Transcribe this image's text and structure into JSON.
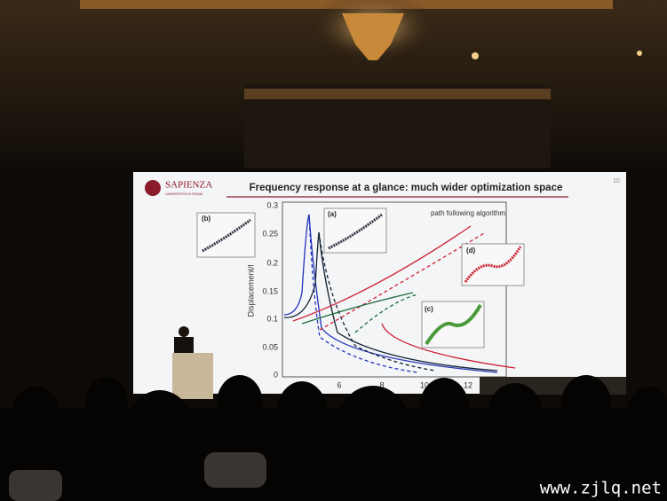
{
  "slide": {
    "logo": {
      "name": "SAPIENZA",
      "subtitle": "UNIVERSITÀ DI ROMA"
    },
    "title": "Frequency response at a glance: much wider optimization space",
    "page_number": "10",
    "plot": {
      "y_label": "Displacement/l",
      "y_ticks": [
        "0.3",
        "0.25",
        "0.2",
        "0.15",
        "0.1",
        "0.05",
        "0"
      ],
      "x_ticks": [
        "6",
        "8",
        "10",
        "12"
      ],
      "annotation": "path following algorithm",
      "insets": [
        "(a)",
        "(b)",
        "(c)",
        "(d)"
      ]
    }
  },
  "watermark": "www.zjlq.net"
}
